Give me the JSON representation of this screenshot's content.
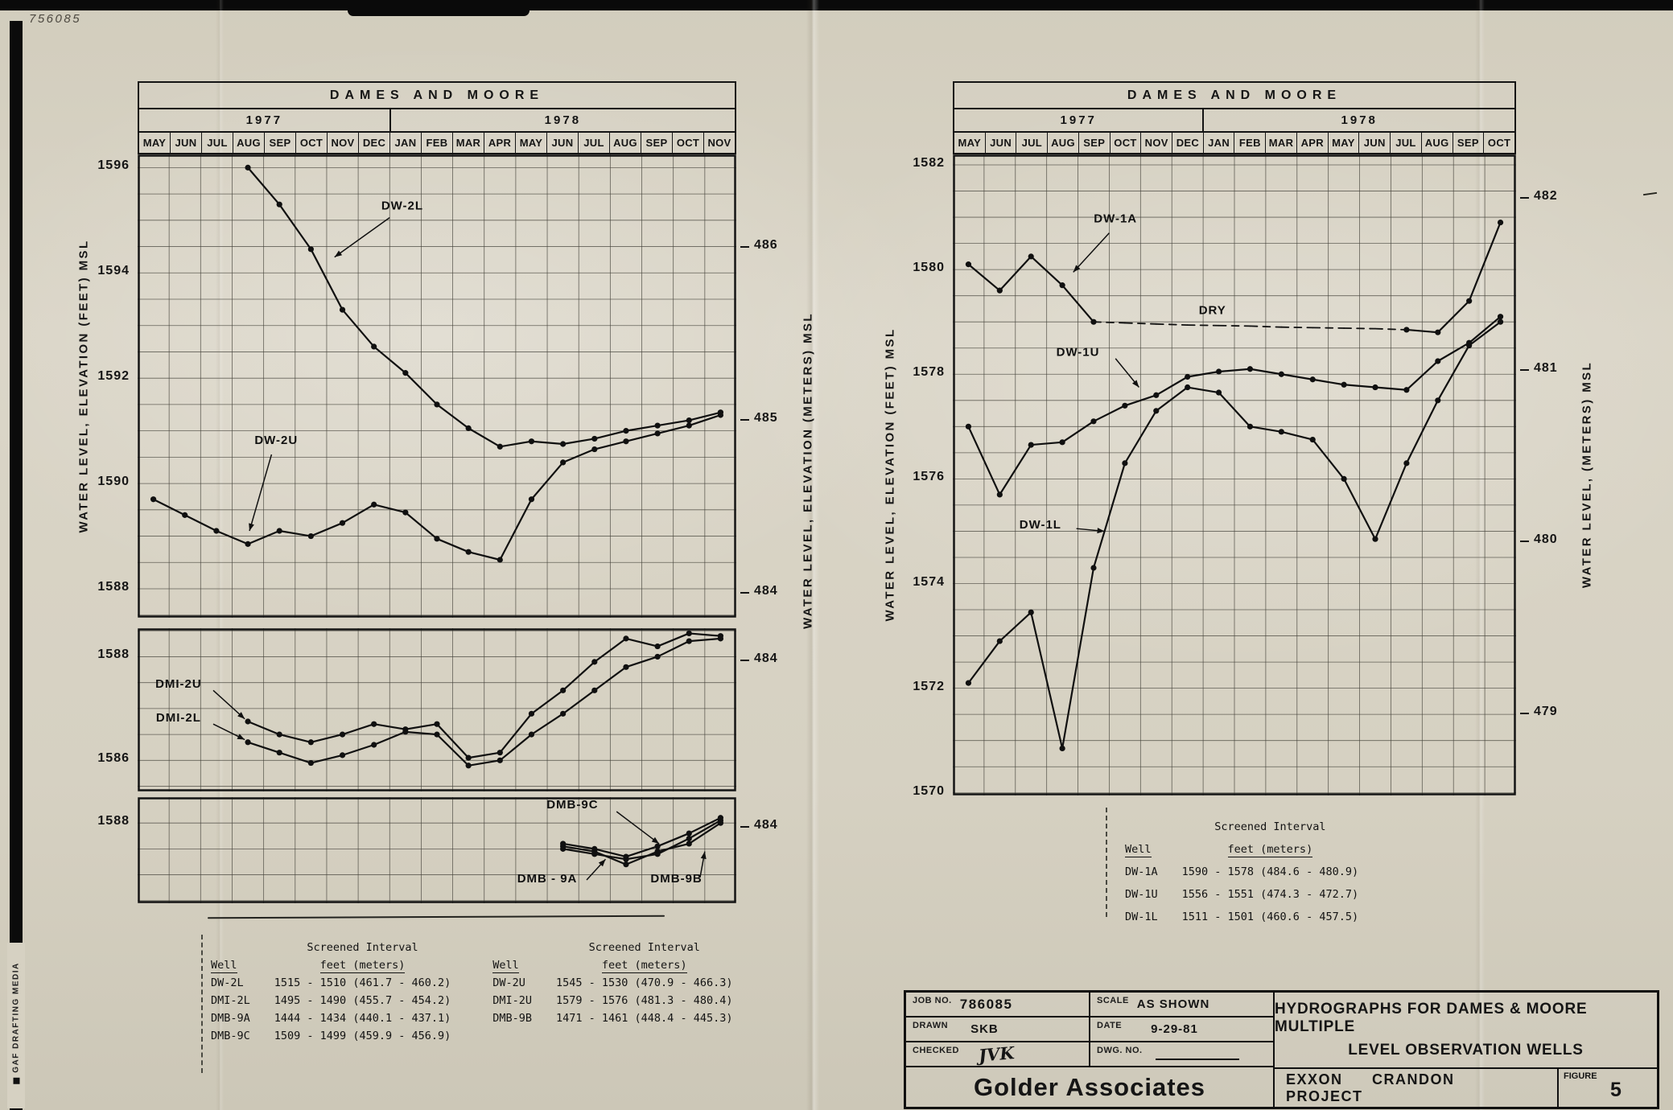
{
  "page": {
    "handwritten_number": "756085",
    "edge_text": "GAF DRAFTING MEDIA"
  },
  "chart_data": [
    {
      "type": "line",
      "title": "DAMES AND MOORE",
      "years": [
        {
          "label": "1977",
          "cols": 8
        },
        {
          "label": "1978",
          "cols": 11
        }
      ],
      "x_months": [
        "MAY",
        "JUN",
        "JUL",
        "AUG",
        "SEP",
        "OCT",
        "NOV",
        "DEC",
        "JAN",
        "FEB",
        "MAR",
        "APR",
        "MAY",
        "JUN",
        "JUL",
        "AUG",
        "SEP",
        "OCT",
        "NOV"
      ],
      "ylabel_left": "WATER LEVEL, ELEVATION (FEET) MSL",
      "ylabel_right": "WATER LEVEL, ELEVATION (METERS) MSL",
      "panels": [
        {
          "ymin": 1587.45,
          "ymax": 1596.25,
          "feet_ticks": [
            1596,
            1594,
            1592,
            1590,
            1588
          ],
          "meter_ticks": [
            486,
            485,
            484
          ],
          "series": [
            {
              "name": "DW-2L",
              "start": 3,
              "values": [
                1596.0,
                1595.3,
                1594.45,
                1593.3,
                1592.6,
                1592.1,
                1591.5,
                1591.05,
                1590.7,
                1590.8,
                1590.75,
                1590.85,
                1591.0,
                1591.1,
                1591.2,
                1591.35
              ]
            },
            {
              "name": "DW-2U",
              "start": 0,
              "values": [
                1589.7,
                1589.4,
                1589.1,
                1588.85,
                1589.1,
                1589.0,
                1589.25,
                1589.6,
                1589.45,
                1588.95,
                1588.7,
                1588.55,
                1589.7,
                1590.4,
                1590.65,
                1590.8,
                1590.95,
                1591.1,
                1591.3
              ]
            }
          ],
          "annotations": [
            {
              "text": "DW-2L",
              "x": 7.9,
              "y": 1595.2,
              "line": [
                [
                  7.5,
                  1595.05
                ],
                [
                  5.75,
                  1594.3
                ]
              ]
            },
            {
              "text": "DW-2U",
              "x": 3.9,
              "y": 1590.75,
              "line": [
                [
                  3.75,
                  1590.55
                ],
                [
                  3.05,
                  1589.1
                ]
              ]
            }
          ]
        },
        {
          "ymin": 1585.4,
          "ymax": 1588.55,
          "feet_ticks": [
            1588,
            1586
          ],
          "meter_ticks": [
            484
          ],
          "series": [
            {
              "name": "DMI-2U",
              "start": 3,
              "values": [
                1586.75,
                1586.5,
                1586.35,
                1586.5,
                1586.7,
                1586.6,
                1586.7,
                1586.05,
                1586.15,
                1586.9,
                1587.35,
                1587.9,
                1588.35,
                1588.2,
                1588.45,
                1588.4
              ]
            },
            {
              "name": "DMI-2L",
              "start": 3,
              "values": [
                1586.35,
                1586.15,
                1585.95,
                1586.1,
                1586.3,
                1586.55,
                1586.5,
                1585.9,
                1586.0,
                1586.5,
                1586.9,
                1587.35,
                1587.8,
                1588.0,
                1588.3,
                1588.35
              ]
            }
          ],
          "annotations": [
            {
              "text": "DMI-2U",
              "x": 0.8,
              "y": 1587.4,
              "line": [
                [
                  1.9,
                  1587.35
                ],
                [
                  2.9,
                  1586.8
                ]
              ]
            },
            {
              "text": "DMI-2L",
              "x": 0.8,
              "y": 1586.75,
              "line": [
                [
                  1.9,
                  1586.7
                ],
                [
                  2.9,
                  1586.4
                ]
              ]
            }
          ]
        },
        {
          "ymin": 1586.45,
          "ymax": 1588.5,
          "feet_ticks": [
            1588
          ],
          "meter_ticks": [
            484
          ],
          "series": [
            {
              "name": "DMB-9C",
              "start": 13,
              "values": [
                1587.6,
                1587.5,
                1587.35,
                1587.55,
                1587.8,
                1588.1
              ]
            },
            {
              "name": "DMB-9A",
              "start": 13,
              "values": [
                1587.55,
                1587.45,
                1587.2,
                1587.45,
                1587.6,
                1588.0
              ]
            },
            {
              "name": "DMB-9B",
              "start": 13,
              "values": [
                1587.5,
                1587.4,
                1587.3,
                1587.4,
                1587.7,
                1588.05
              ]
            }
          ],
          "annotations": [
            {
              "text": "DMB-9C",
              "x": 13.3,
              "y": 1588.28,
              "line": [
                [
                  14.7,
                  1588.22
                ],
                [
                  16.05,
                  1587.6
                ]
              ]
            },
            {
              "text": "DMB - 9A",
              "x": 12.5,
              "y": 1586.85,
              "line": [
                [
                  13.75,
                  1586.9
                ],
                [
                  14.35,
                  1587.3
                ]
              ]
            },
            {
              "text": "DMB-9B",
              "x": 16.6,
              "y": 1586.85,
              "line": [
                [
                  17.35,
                  1586.95
                ],
                [
                  17.5,
                  1587.45
                ]
              ]
            }
          ]
        }
      ]
    },
    {
      "type": "line",
      "title": "DAMES AND MOORE",
      "years": [
        {
          "label": "1977",
          "cols": 8
        },
        {
          "label": "1978",
          "cols": 10
        }
      ],
      "x_months": [
        "MAY",
        "JUN",
        "JUL",
        "AUG",
        "SEP",
        "OCT",
        "NOV",
        "DEC",
        "JAN",
        "FEB",
        "MAR",
        "APR",
        "MAY",
        "JUN",
        "JUL",
        "AUG",
        "SEP",
        "OCT"
      ],
      "ylabel_left": "WATER LEVEL, ELEVATION (FEET) MSL",
      "ylabel_right": "WATER LEVEL, (METERS) MSL",
      "panels": [
        {
          "ymin": 1569.95,
          "ymax": 1582.2,
          "feet_ticks": [
            1582,
            1580,
            1578,
            1576,
            1574,
            1572,
            1570
          ],
          "meter_ticks": [
            482,
            481,
            480,
            479
          ],
          "series": [
            {
              "name": "DW-1A",
              "start": 0,
              "dash_from": 4,
              "dash_to": 14,
              "values": [
                1580.1,
                1579.6,
                1580.25,
                1579.7,
                1579.0,
                1578.98,
                1578.96,
                1578.94,
                1578.93,
                1578.92,
                1578.9,
                1578.89,
                1578.88,
                1578.87,
                1578.85,
                1578.8,
                1579.4,
                1580.9
              ]
            },
            {
              "name": "DW-1U",
              "start": 0,
              "values": [
                1577.0,
                1575.7,
                1576.65,
                1576.7,
                1577.1,
                1577.4,
                1577.6,
                1577.95,
                1578.05,
                1578.1,
                1578.0,
                1577.9,
                1577.8,
                1577.75,
                1577.7,
                1578.25,
                1578.6,
                1579.1
              ]
            },
            {
              "name": "DW-1L",
              "start": 0,
              "values": [
                1572.1,
                1572.9,
                1573.45,
                1570.85,
                1574.3,
                1576.3,
                1577.3,
                1577.75,
                1577.65,
                1577.0,
                1576.9,
                1576.75,
                1576.0,
                1574.85,
                1576.3,
                1577.5,
                1578.55,
                1579.0
              ]
            }
          ],
          "annotations": [
            {
              "text": "DW-1A",
              "x": 4.7,
              "y": 1580.9,
              "line": [
                [
                  4.5,
                  1580.7
                ],
                [
                  3.35,
                  1579.95
                ]
              ]
            },
            {
              "text": "DRY",
              "x": 7.8,
              "y": 1579.15
            },
            {
              "text": "DW-1U",
              "x": 3.5,
              "y": 1578.35,
              "line": [
                [
                  4.7,
                  1578.3
                ],
                [
                  5.45,
                  1577.75
                ]
              ]
            },
            {
              "text": "DW-1L",
              "x": 2.3,
              "y": 1575.05,
              "line": [
                [
                  3.45,
                  1575.05
                ],
                [
                  4.35,
                  1575.0
                ]
              ]
            }
          ]
        }
      ]
    }
  ],
  "legends": {
    "left": {
      "well_header": "Well",
      "interval_header": "Screened Interval",
      "units_header": "feet (meters)",
      "rows": [
        {
          "well": "DW-2L",
          "interval": "1515 - 1510 (461.7 - 460.2)",
          "well2": "DW-2U",
          "interval2": "1545 - 1530 (470.9 - 466.3)"
        },
        {
          "well": "DMI-2L",
          "interval": "1495 - 1490 (455.7 - 454.2)",
          "well2": "DMI-2U",
          "interval2": "1579 - 1576 (481.3 - 480.4)"
        },
        {
          "well": "DMB-9A",
          "interval": "1444 - 1434 (440.1 - 437.1)",
          "well2": "DMB-9B",
          "interval2": "1471 - 1461 (448.4 - 445.3)"
        },
        {
          "well": "DMB-9C",
          "interval": "1509 - 1499 (459.9 - 456.9)",
          "well2": "",
          "interval2": ""
        }
      ]
    },
    "right": {
      "well_header": "Well",
      "interval_header": "Screened Interval",
      "units_header": "feet (meters)",
      "rows": [
        {
          "well": "DW-1A",
          "interval": "1590 - 1578 (484.6 - 480.9)"
        },
        {
          "well": "DW-1U",
          "interval": "1556 - 1551 (474.3 - 472.7)"
        },
        {
          "well": "DW-1L",
          "interval": "1511 - 1501 (460.6 - 457.5)"
        }
      ]
    }
  },
  "title_block": {
    "job_no_label": "JOB NO.",
    "job_no": "786085",
    "scale_label": "SCALE",
    "scale": "AS SHOWN",
    "drawn_label": "DRAWN",
    "drawn": "SKB",
    "date_label": "DATE",
    "date": "9-29-81",
    "checked_label": "CHECKED",
    "checked": "JVK",
    "dwg_label": "DWG. NO.",
    "company": "Golder Associates",
    "title_line1": "HYDROGRAPHS FOR DAMES & MOORE MULTIPLE",
    "title_line2": "LEVEL OBSERVATION WELLS",
    "project": "EXXON CRANDON PROJECT",
    "figure_label": "FIGURE",
    "figure_no": "5"
  }
}
